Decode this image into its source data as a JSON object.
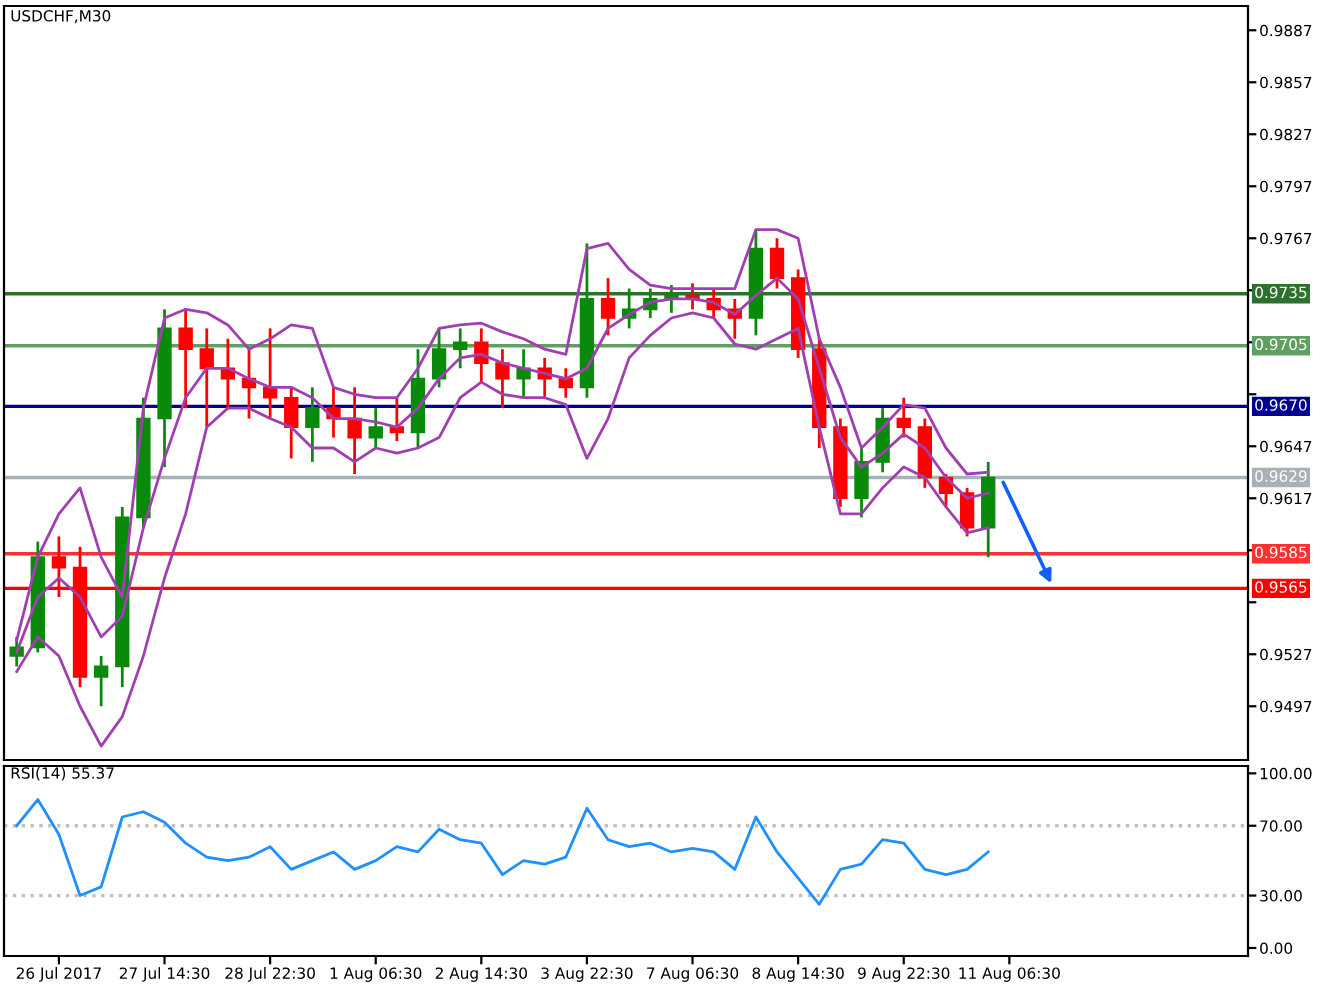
{
  "chart_data": [
    {
      "type": "candlestick",
      "title": "USDCHF,M30",
      "categories": [
        null,
        null,
        null,
        null,
        null,
        null,
        null,
        null,
        null,
        null,
        null,
        null,
        null,
        null,
        null,
        null,
        null,
        null,
        null,
        null,
        null,
        null,
        null,
        null,
        null,
        null,
        null,
        null,
        null,
        null,
        null,
        null,
        null,
        null,
        null,
        null,
        null,
        null,
        null,
        null,
        null,
        null,
        null,
        null,
        null,
        null,
        null,
        null,
        null,
        null,
        null,
        null,
        null,
        null,
        null,
        null,
        null,
        null
      ],
      "ohlc": [
        [
          0.9526,
          0.9537,
          0.952,
          0.9531
        ],
        [
          0.9531,
          0.9592,
          0.9528,
          0.9583
        ],
        [
          0.9583,
          0.9595,
          0.956,
          0.9577
        ],
        [
          0.9577,
          0.9589,
          0.9508,
          0.9514
        ],
        [
          0.9514,
          0.9526,
          0.9497,
          0.952
        ],
        [
          0.952,
          0.9612,
          0.9508,
          0.9606
        ],
        [
          0.9606,
          0.9675,
          0.96,
          0.9663
        ],
        [
          0.9663,
          0.9726,
          0.9635,
          0.9715
        ],
        [
          0.9715,
          0.9726,
          0.9669,
          0.9703
        ],
        [
          0.9703,
          0.9715,
          0.9658,
          0.9692
        ],
        [
          0.9692,
          0.9709,
          0.9669,
          0.9686
        ],
        [
          0.9686,
          0.9703,
          0.9663,
          0.9681
        ],
        [
          0.9681,
          0.9715,
          0.9663,
          0.9675
        ],
        [
          0.9675,
          0.9681,
          0.964,
          0.9658
        ],
        [
          0.9658,
          0.9681,
          0.9638,
          0.9669
        ],
        [
          0.9669,
          0.9681,
          0.9652,
          0.9663
        ],
        [
          0.9663,
          0.9681,
          0.9631,
          0.9652
        ],
        [
          0.9652,
          0.9669,
          0.9646,
          0.9658
        ],
        [
          0.9658,
          0.9675,
          0.965,
          0.9655
        ],
        [
          0.9655,
          0.9703,
          0.9646,
          0.9686
        ],
        [
          0.9686,
          0.9715,
          0.9681,
          0.9703
        ],
        [
          0.9703,
          0.9715,
          0.9692,
          0.9707
        ],
        [
          0.9707,
          0.9715,
          0.9684,
          0.9695
        ],
        [
          0.9695,
          0.9703,
          0.9669,
          0.9686
        ],
        [
          0.9686,
          0.9703,
          0.9675,
          0.9692
        ],
        [
          0.9692,
          0.9698,
          0.9675,
          0.9686
        ],
        [
          0.9686,
          0.9692,
          0.9675,
          0.9681
        ],
        [
          0.9681,
          0.9764,
          0.9675,
          0.9732
        ],
        [
          0.9732,
          0.9744,
          0.9711,
          0.9721
        ],
        [
          0.9721,
          0.9738,
          0.9715,
          0.9726
        ],
        [
          0.9726,
          0.9738,
          0.9721,
          0.9732
        ],
        [
          0.9732,
          0.974,
          0.9724,
          0.9734
        ],
        [
          0.9734,
          0.9741,
          0.9726,
          0.9732
        ],
        [
          0.9732,
          0.9738,
          0.9721,
          0.9726
        ],
        [
          0.9726,
          0.9732,
          0.9709,
          0.9721
        ],
        [
          0.9721,
          0.9772,
          0.9711,
          0.9761
        ],
        [
          0.9761,
          0.9767,
          0.9738,
          0.9744
        ],
        [
          0.9744,
          0.9749,
          0.9698,
          0.9703
        ],
        [
          0.9703,
          0.9709,
          0.9646,
          0.9658
        ],
        [
          0.9658,
          0.9663,
          0.9612,
          0.9617
        ],
        [
          0.9617,
          0.9646,
          0.9606,
          0.9638
        ],
        [
          0.9638,
          0.9669,
          0.9632,
          0.9663
        ],
        [
          0.9663,
          0.9675,
          0.9652,
          0.9658
        ],
        [
          0.9658,
          0.9663,
          0.9623,
          0.9629
        ],
        [
          0.9629,
          0.9631,
          0.9612,
          0.962
        ],
        [
          0.962,
          0.9623,
          0.9595,
          0.96
        ],
        [
          0.96,
          0.9638,
          0.9583,
          0.9629
        ],
        null,
        null,
        null,
        null,
        null,
        null,
        null,
        null,
        null,
        null,
        null
      ],
      "colors": [
        "#0a8a0a",
        "#0a8a0a",
        "#ff0000",
        "#ff0000",
        "#0a8a0a",
        "#0a8a0a",
        "#0a8a0a",
        "#0a8a0a",
        "#ff0000",
        "#ff0000",
        "#ff0000",
        "#ff0000",
        "#ff0000",
        "#ff0000",
        "#0a8a0a",
        "#ff0000",
        "#ff0000",
        "#0a8a0a",
        "#ff0000",
        "#0a8a0a",
        "#0a8a0a",
        "#0a8a0a",
        "#ff0000",
        "#ff0000",
        "#0a8a0a",
        "#ff0000",
        "#ff0000",
        "#0a8a0a",
        "#ff0000",
        "#0a8a0a",
        "#0a8a0a",
        "#0a8a0a",
        "#ff0000",
        "#ff0000",
        "#ff0000",
        "#0a8a0a",
        "#ff0000",
        "#ff0000",
        "#ff0000",
        "#ff0000",
        "#0a8a0a",
        "#0a8a0a",
        "#ff0000",
        "#ff0000",
        "#ff0000",
        "#ff0000",
        "#0a8a0a",
        null,
        null,
        null,
        null,
        null,
        null,
        null,
        null,
        null,
        null,
        null
      ],
      "series": [
        {
          "type": "line",
          "color": "#a040b0",
          "values": [
            0.9535,
            0.9583,
            0.9608,
            0.9623,
            0.9583,
            0.956,
            0.9669,
            0.9721,
            0.9726,
            0.9724,
            0.9717,
            0.9703,
            0.9709,
            0.9717,
            0.9715,
            0.9681,
            0.9677,
            0.9675,
            0.9675,
            0.9692,
            0.9715,
            0.9717,
            0.9718,
            0.9713,
            0.9709,
            0.9703,
            0.97,
            0.9761,
            0.9764,
            0.9749,
            0.974,
            0.9738,
            0.9738,
            0.9738,
            0.9738,
            0.9772,
            0.9772,
            0.9767,
            0.9709,
            0.9681,
            0.9646,
            0.9658,
            0.9671,
            0.9669,
            0.9646,
            0.9631,
            0.9632,
            null,
            null,
            null,
            null,
            null,
            null,
            null,
            null,
            null,
            null,
            null
          ]
        },
        {
          "type": "line",
          "color": "#a040b0",
          "values": [
            0.9528,
            0.956,
            0.9571,
            0.956,
            0.9537,
            0.9549,
            0.96,
            0.964,
            0.9675,
            0.9692,
            0.9692,
            0.9686,
            0.9681,
            0.9681,
            0.9675,
            0.9663,
            0.9663,
            0.9661,
            0.9658,
            0.9669,
            0.9686,
            0.9698,
            0.97,
            0.9695,
            0.9692,
            0.9689,
            0.9686,
            0.9692,
            0.9715,
            0.9723,
            0.973,
            0.9732,
            0.9732,
            0.973,
            0.9723,
            0.9734,
            0.9744,
            0.9732,
            0.9692,
            0.9652,
            0.9635,
            0.9643,
            0.9654,
            0.9646,
            0.9629,
            0.9617,
            0.962,
            null,
            null,
            null,
            null,
            null,
            null,
            null,
            null,
            null,
            null,
            null
          ]
        },
        {
          "type": "line",
          "color": "#a040b0",
          "values": [
            0.9517,
            0.9537,
            0.9526,
            0.9497,
            0.9474,
            0.9491,
            0.9526,
            0.9571,
            0.9608,
            0.9658,
            0.9669,
            0.9669,
            0.9663,
            0.9658,
            0.9646,
            0.9646,
            0.9638,
            0.9646,
            0.9643,
            0.9646,
            0.9652,
            0.9675,
            0.9684,
            0.9677,
            0.9675,
            0.9675,
            0.9671,
            0.964,
            0.9663,
            0.9698,
            0.9711,
            0.9721,
            0.9724,
            0.9721,
            0.9706,
            0.9703,
            0.9709,
            0.9715,
            0.9658,
            0.9608,
            0.9608,
            0.9623,
            0.9635,
            0.9629,
            0.9612,
            0.9597,
            0.96,
            null,
            null,
            null,
            null,
            null,
            null,
            null,
            null,
            null,
            null,
            null
          ]
        }
      ],
      "ylim": [
        0.9466,
        0.9901
      ],
      "yticks": [
        0.9497,
        0.9527,
        {
          "value": 0.9557,
          "label": null
        },
        {
          "value": 0.9587,
          "label": null
        },
        0.9617,
        0.9647,
        {
          "value": 0.9677,
          "label": null
        },
        {
          "value": 0.9707,
          "label": null
        },
        {
          "value": 0.9737,
          "label": null
        },
        0.9767,
        0.9797,
        0.9827,
        0.9857,
        0.9887
      ],
      "ref_lines": [
        {
          "axis": "y",
          "value": 0.9735,
          "label": "0.9735",
          "color": "#2f6f2f"
        },
        {
          "axis": "y",
          "value": 0.9705,
          "label": "0.9705",
          "color": "#5f9f5f"
        },
        {
          "axis": "y",
          "value": 0.967,
          "label": "0.9670",
          "color": "#000090"
        },
        {
          "axis": "y",
          "value": 0.9629,
          "label": "0.9629",
          "color": "#a8b0b8"
        },
        {
          "axis": "y",
          "value": 0.9585,
          "label": "0.9585",
          "color": "#ff3030"
        },
        {
          "axis": "y",
          "value": 0.9565,
          "label": "0.9565",
          "color": "#ff0000"
        }
      ],
      "tick_labels": "y"
    },
    {
      "type": "line",
      "title": "RSI(14) 55.37",
      "categories": [
        null,
        null,
        "26 Jul 2017",
        null,
        null,
        null,
        null,
        "27 Jul 14:30",
        null,
        null,
        null,
        null,
        "28 Jul 22:30",
        null,
        null,
        null,
        null,
        "1 Aug 06:30",
        null,
        null,
        null,
        null,
        "2 Aug 14:30",
        null,
        null,
        null,
        null,
        "3 Aug 22:30",
        null,
        null,
        null,
        null,
        "7 Aug 06:30",
        null,
        null,
        null,
        null,
        "8 Aug 14:30",
        null,
        null,
        null,
        null,
        "9 Aug 22:30",
        null,
        null,
        null,
        null,
        "11 Aug 06:30",
        null,
        null,
        null,
        null,
        null,
        null,
        null,
        null,
        null,
        null
      ],
      "series": [
        {
          "color": "#1e90ff",
          "values": [
            70,
            85,
            65,
            30,
            35,
            75,
            78,
            72,
            60,
            52,
            50,
            52,
            58,
            45,
            50,
            55,
            45,
            50,
            58,
            55,
            68,
            62,
            60,
            42,
            50,
            48,
            52,
            80,
            62,
            58,
            60,
            55,
            57,
            55,
            45,
            75,
            55,
            40,
            25,
            45,
            48,
            62,
            60,
            45,
            42,
            45,
            55,
            null,
            null,
            null,
            null,
            null,
            null,
            null,
            null,
            null,
            null,
            null
          ]
        }
      ],
      "ylim": [
        -4.6,
        104.2
      ],
      "yticks": [
        {
          "value": 0,
          "label": "0.00"
        },
        {
          "value": 30,
          "label": "30.00"
        },
        {
          "value": 70,
          "label": "70.00"
        },
        {
          "value": 100,
          "label": "100.00"
        }
      ],
      "ref_lines": [
        {
          "axis": "y",
          "value": 30,
          "color": "#c0c0c0",
          "line_style": "dotted"
        },
        {
          "axis": "y",
          "value": 70,
          "color": "#c0c0c0",
          "line_style": "dotted"
        }
      ]
    }
  ]
}
